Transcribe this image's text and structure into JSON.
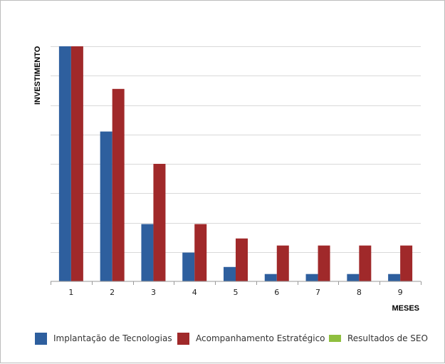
{
  "chart_data": {
    "type": "bar",
    "title": "",
    "xlabel": "MESES",
    "ylabel": "INVESTIMENTO",
    "categories": [
      "1",
      "2",
      "3",
      "4",
      "5",
      "6",
      "7",
      "8",
      "9"
    ],
    "ylim": [
      0,
      8
    ],
    "grid": true,
    "legend_position": "bottom",
    "series": [
      {
        "name": "Implantação de Tecnologias",
        "color": "#2e5f9e",
        "values": [
          8.0,
          5.1,
          1.95,
          0.98,
          0.49,
          0.25,
          0.25,
          0.25,
          0.25
        ]
      },
      {
        "name": "Acompanhamento Estratégico",
        "color": "#a0292a",
        "values": [
          8.0,
          6.55,
          4.0,
          1.95,
          1.46,
          1.22,
          1.22,
          1.22,
          1.22
        ]
      },
      {
        "name": "Resultados de SEO",
        "color": "#8fbf3f",
        "values": [
          0,
          0,
          0,
          0,
          0,
          0,
          0,
          0,
          0
        ]
      }
    ]
  }
}
